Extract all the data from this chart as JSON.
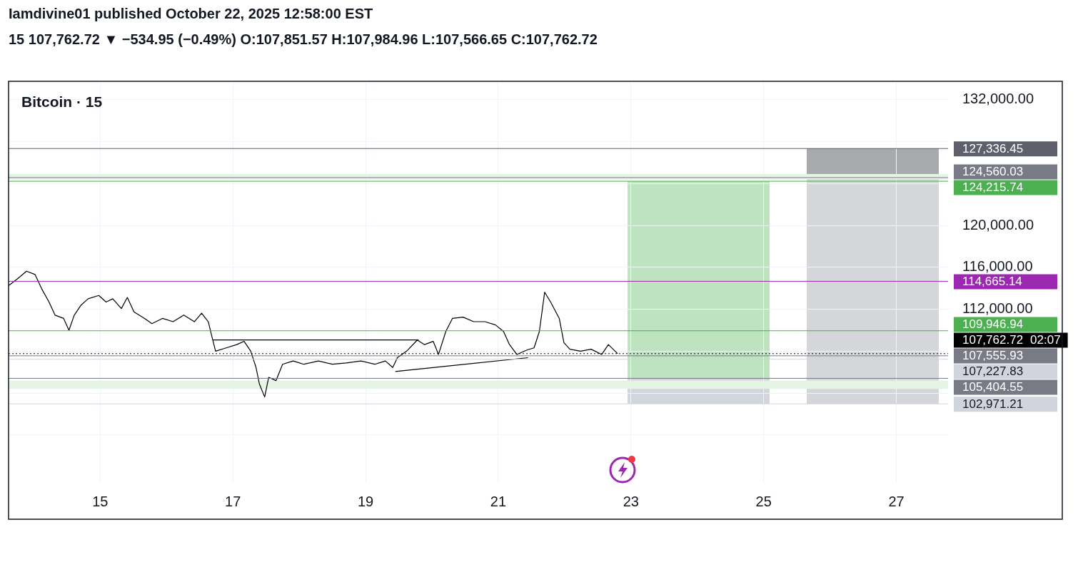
{
  "chart_data": {
    "type": "line",
    "title": "Iamdivine01 published October 22, 2025 12:58:00 EST",
    "subtitle": "15  107,762.72 ▼ −534.95 (−0.49%)  O:107,851.57  H:107,984.96  L:107,566.65  C:107,762.72",
    "xlim": [
      13.62,
      27.78
    ],
    "xticks": [
      15,
      17,
      19,
      21,
      23,
      25,
      27
    ],
    "ylim": [
      95500,
      133750
    ],
    "yticks": [
      {
        "value": 100000,
        "label": null
      },
      {
        "value": 104000,
        "label": null
      },
      {
        "value": 108000,
        "label": null
      },
      {
        "value": 112000,
        "label": "112,000.00"
      },
      {
        "value": 116000,
        "label": "116,000.00"
      },
      {
        "value": 120000,
        "label": "120,000.00"
      },
      {
        "value": 124000,
        "label": null
      },
      {
        "value": 128000,
        "label": null
      },
      {
        "value": 132000,
        "label": "132,000.00"
      }
    ],
    "grid": true,
    "legend": false,
    "marker": "none",
    "series": [
      {
        "type": "line",
        "color": "#000000",
        "x": [
          16.7,
          19.8
        ],
        "values": [
          109063,
          109063
        ]
      },
      {
        "type": "line",
        "color": "#000000",
        "x": [
          19.45,
          21.45
        ],
        "values": [
          106063,
          107375
        ]
      },
      {
        "color": "#000000",
        "x": [
          13.62,
          13.75,
          13.89,
          14.02,
          14.12,
          14.23,
          14.32,
          14.45,
          14.53,
          14.61,
          14.71,
          14.82,
          14.98,
          15.09,
          15.19,
          15.32,
          15.41,
          15.51,
          15.67,
          15.78,
          15.94,
          16.1,
          16.26,
          16.42,
          16.53,
          16.63,
          16.69,
          16.74,
          16.9,
          17.06,
          17.17,
          17.27,
          17.35,
          17.4,
          17.48,
          17.54,
          17.65,
          17.75,
          17.91,
          18.07,
          18.29,
          18.5,
          18.71,
          18.93,
          19.14,
          19.3,
          19.41,
          19.48,
          19.62,
          19.78,
          19.89,
          20.02,
          20.1,
          20.21,
          20.31,
          20.47,
          20.63,
          20.8,
          20.96,
          21.08,
          21.17,
          21.28,
          21.44,
          21.54,
          21.62,
          21.7,
          21.79,
          21.92,
          21.99,
          22.08,
          22.24,
          22.4,
          22.56,
          22.66,
          22.8
        ],
        "values": [
          114250,
          114875,
          115625,
          115312,
          113937,
          112687,
          111437,
          111125,
          110000,
          111437,
          112375,
          113000,
          113312,
          112687,
          113000,
          112062,
          113125,
          111750,
          111125,
          110625,
          111125,
          110812,
          111437,
          110812,
          111625,
          110812,
          109250,
          108000,
          108312,
          108625,
          108937,
          108000,
          106437,
          104875,
          103625,
          105500,
          105187,
          106750,
          107062,
          106750,
          107062,
          106750,
          106875,
          107062,
          106750,
          107062,
          106437,
          107375,
          108000,
          109062,
          108625,
          108937,
          107687,
          109875,
          111125,
          111250,
          110812,
          110812,
          110500,
          109875,
          108625,
          107687,
          108125,
          108312,
          109875,
          113625,
          112687,
          111125,
          108812,
          108187,
          108000,
          108187,
          107687,
          108625,
          107763
        ]
      }
    ],
    "bands": [
      {
        "axis": "y",
        "from": 124400,
        "to": 124900,
        "color": "#e6f4e6"
      },
      {
        "axis": "y",
        "from": 104400,
        "to": 105200,
        "color": "#e6f4e6"
      }
    ],
    "ref_lines": [
      {
        "axis": "y",
        "value": 127336.45,
        "label": "127,336.45",
        "color": "#5d606b"
      },
      {
        "axis": "y",
        "value": 124560.03,
        "label": "124,560.03",
        "color": "#787b86"
      },
      {
        "axis": "y",
        "value": 124215.74,
        "label": "124,215.74",
        "color": "#4caf50",
        "line_style": "solid"
      },
      {
        "axis": "y",
        "value": 114665.14,
        "label": "114,665.14",
        "color": "#9c27b0",
        "line_style": "solid"
      },
      {
        "axis": "y",
        "value": 109946.94,
        "label": "109,946.94",
        "color": "#4caf50"
      },
      {
        "axis": "y",
        "value": 107762.72,
        "label": "107,762.72\n02:07",
        "color": "#000000",
        "line_style": "dotted"
      },
      {
        "axis": "y",
        "value": 107555.93,
        "label": "107,555.93",
        "color": "#787b86"
      },
      {
        "axis": "y",
        "value": 107227.83,
        "label": "107,227.83",
        "color": "#d1d4dc"
      },
      {
        "axis": "y",
        "value": 105404.55,
        "label": "105,404.55",
        "color": "#787b86"
      },
      {
        "axis": "y",
        "value": 102971.21,
        "label": "102,971.21",
        "color": "#d1d4dc"
      }
    ],
    "annotations": [
      "Bitcoin · 15"
    ]
  }
}
